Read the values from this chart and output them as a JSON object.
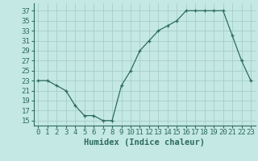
{
  "x": [
    0,
    1,
    2,
    3,
    4,
    5,
    6,
    7,
    8,
    9,
    10,
    11,
    12,
    13,
    14,
    15,
    16,
    17,
    18,
    19,
    20,
    21,
    22,
    23
  ],
  "y": [
    23,
    23,
    22,
    21,
    18,
    16,
    16,
    15,
    15,
    22,
    25,
    29,
    31,
    33,
    34,
    35,
    37,
    37,
    37,
    37,
    37,
    32,
    27,
    23
  ],
  "line_color": "#2d6b5e",
  "marker": "+",
  "bg_color": "#c4e8e4",
  "grid_color": "#a8ceca",
  "xlabel": "Humidex (Indice chaleur)",
  "ylabel_ticks": [
    15,
    17,
    19,
    21,
    23,
    25,
    27,
    29,
    31,
    33,
    35,
    37
  ],
  "ylim": [
    14,
    38.5
  ],
  "xlim": [
    -0.5,
    23.5
  ],
  "axis_fontsize": 6.5,
  "label_fontsize": 7.5
}
